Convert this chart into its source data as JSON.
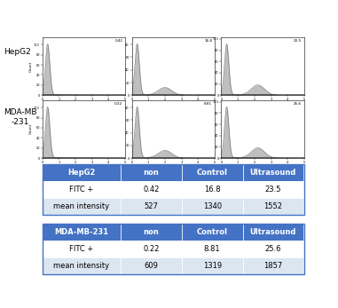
{
  "cell_labels": [
    "HepG2",
    "MDA-MB\n-231"
  ],
  "col_labels": [
    "non",
    "Control",
    "Ultrasound"
  ],
  "table1_header": [
    "HepG2",
    "non",
    "Control",
    "Ultrasound"
  ],
  "table1_rows": [
    [
      "FITC +",
      "0.42",
      "16.8",
      "23.5"
    ],
    [
      "mean intensity",
      "527",
      "1340",
      "1552"
    ]
  ],
  "table2_header": [
    "MDA-MB-231",
    "non",
    "Control",
    "Ultrasound"
  ],
  "table2_rows": [
    [
      "FITC +",
      "0.22",
      "8.81",
      "25.6"
    ],
    [
      "mean intensity",
      "609",
      "1319",
      "1857"
    ]
  ],
  "header_color": "#4472C4",
  "header_text_color": "#ffffff",
  "row_color_light": "#dce6f1",
  "row_color_white": "#ffffff",
  "table_border_color": "#4472C4",
  "background_color": "#ffffff"
}
